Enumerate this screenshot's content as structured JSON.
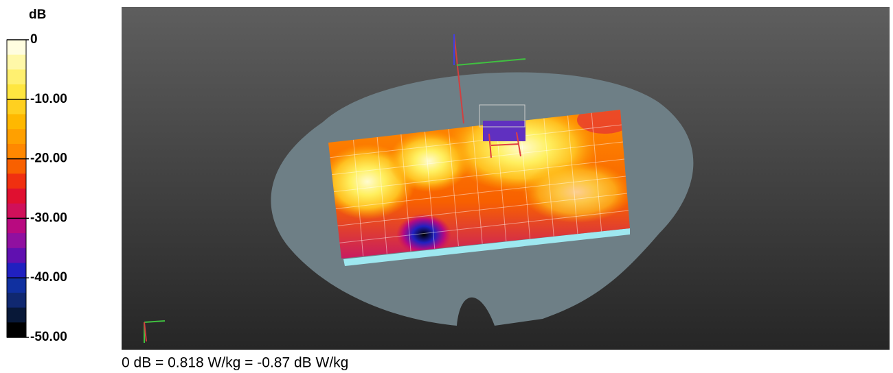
{
  "colorbar": {
    "unit": "dB",
    "ticks": [
      {
        "value": 0,
        "label": "0"
      },
      {
        "value": -10,
        "label": "-10.00"
      },
      {
        "value": -20,
        "label": "-20.00"
      },
      {
        "value": -30,
        "label": "-30.00"
      },
      {
        "value": -40,
        "label": "-40.00"
      },
      {
        "value": -50,
        "label": "-50.00"
      }
    ],
    "colors": [
      "#fffde0",
      "#fff8a8",
      "#fff070",
      "#ffe640",
      "#ffd020",
      "#ffb800",
      "#ffa000",
      "#ff8800",
      "#f86000",
      "#f03010",
      "#e01030",
      "#d0105a",
      "#b80a80",
      "#9010a0",
      "#6010b0",
      "#2020c0",
      "#1030a0",
      "#102870",
      "#081838",
      "#000000"
    ]
  },
  "footer": "0 dB = 0.818 W/kg = -0.87 dB W/kg"
}
